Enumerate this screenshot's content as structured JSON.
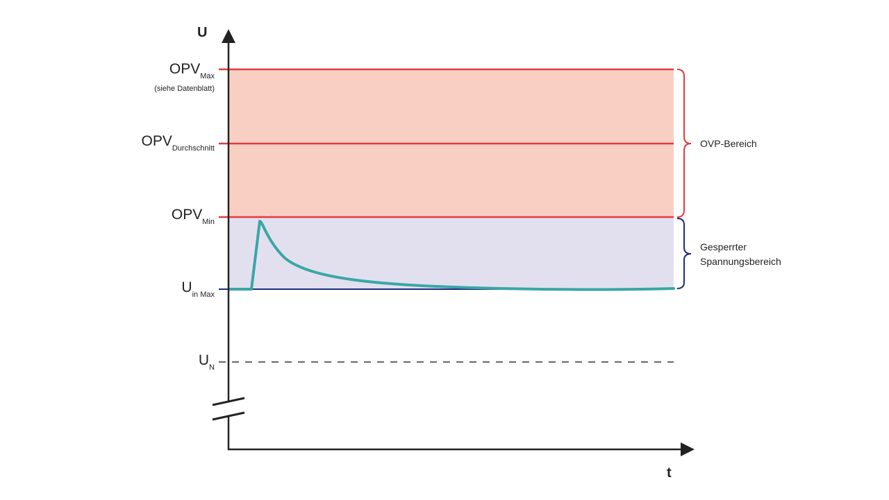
{
  "axes": {
    "y_label": "U",
    "x_label": "t"
  },
  "levels": [
    {
      "id": "opv-max",
      "main": "OPV",
      "sub": "Max",
      "note": "(siehe Datenblatt)"
    },
    {
      "id": "opv-avg",
      "main": "OPV",
      "sub": "Durchschnitt",
      "note": ""
    },
    {
      "id": "opv-min",
      "main": "OPV",
      "sub": "Min",
      "note": ""
    },
    {
      "id": "u-in-max",
      "main": "U",
      "sub": "in Max",
      "note": ""
    },
    {
      "id": "u-n",
      "main": "U",
      "sub": "N",
      "note": ""
    }
  ],
  "regions": {
    "ovp": {
      "label": "OVP-Bereich"
    },
    "blocked": {
      "label_line1": "Gesperrter",
      "label_line2": "Spannungsbereich"
    }
  },
  "colors": {
    "ovp_fill": "#f9cfc4",
    "ovp_line": "#e23a3e",
    "blocked_fill": "#e2e0ef",
    "blocked_line": "#1f2b7a",
    "signal": "#3aa6a6",
    "axis": "#222222",
    "nominal_dash": "#333333"
  }
}
